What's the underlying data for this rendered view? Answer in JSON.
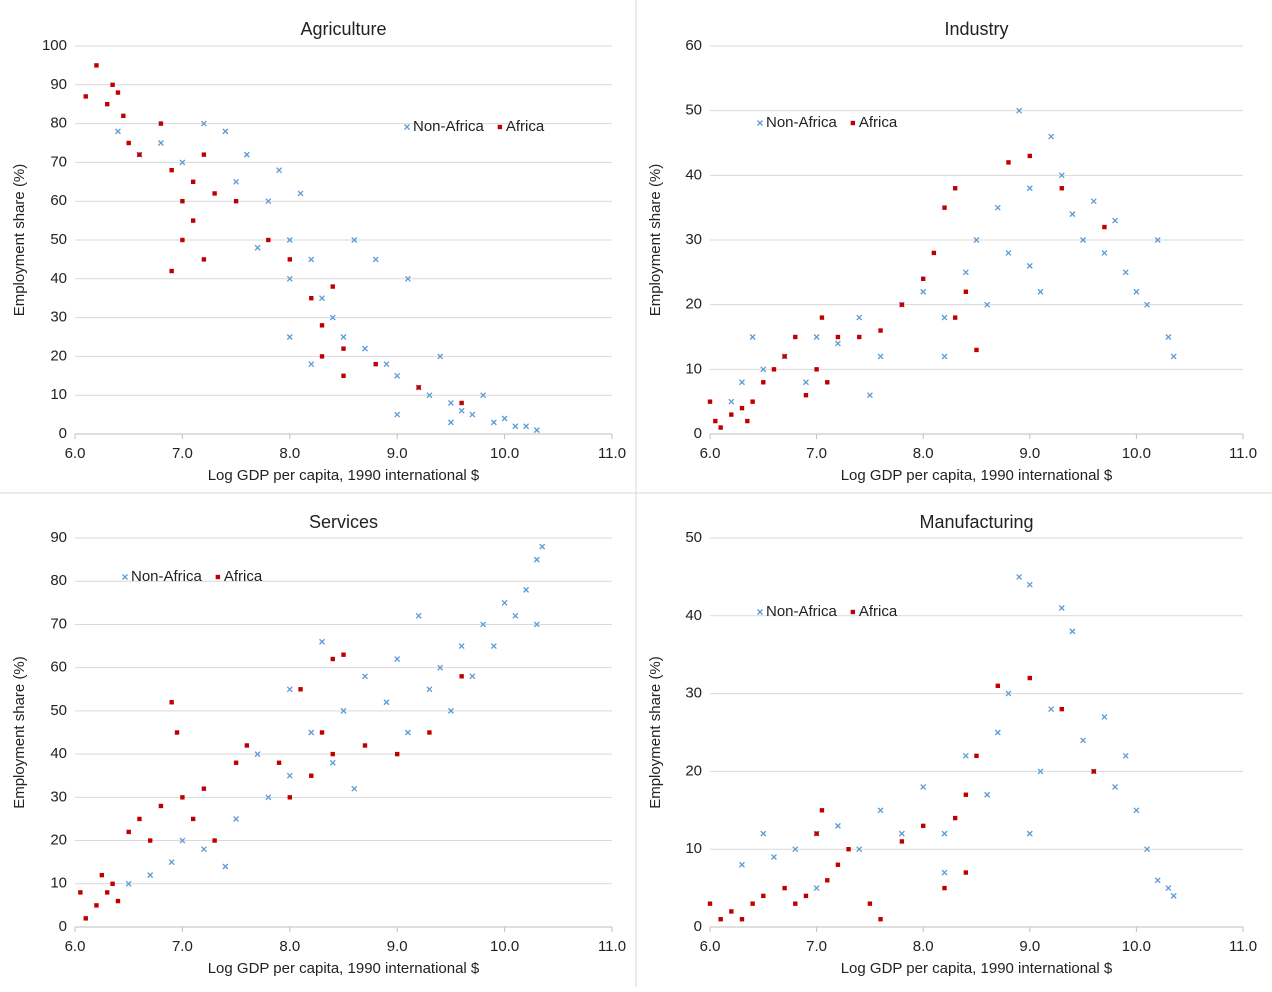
{
  "chart_data": [
    {
      "type": "scatter",
      "title": "Agriculture",
      "x_label": "Log GDP per capita, 1990 international $",
      "y_label": "Employment share (%)",
      "xlim": [
        6,
        11
      ],
      "ylim": [
        0,
        100
      ],
      "xticks": [
        {
          "value": 6,
          "label": "6.0"
        },
        {
          "value": 7,
          "label": "7.0"
        },
        {
          "value": 8,
          "label": "8.0"
        },
        {
          "value": 9,
          "label": "9.0"
        },
        {
          "value": 10,
          "label": "10.0"
        },
        {
          "value": 11,
          "label": "11.0"
        }
      ],
      "yticks": [
        0,
        10,
        20,
        30,
        40,
        50,
        60,
        70,
        80,
        90,
        100
      ],
      "grid": true,
      "legend": "upper right",
      "series": [
        {
          "name": "Non-Africa",
          "color": "#5b9bd5",
          "marker": "x",
          "x": [
            6.4,
            6.6,
            6.8,
            7.0,
            7.2,
            7.4,
            7.5,
            7.6,
            7.8,
            7.9,
            8.0,
            8.0,
            8.1,
            8.2,
            8.3,
            8.4,
            8.5,
            8.6,
            8.7,
            8.8,
            8.9,
            9.0,
            9.1,
            9.2,
            9.3,
            9.4,
            9.5,
            9.6,
            9.7,
            9.8,
            9.9,
            10.0,
            10.1,
            10.2,
            10.3,
            8.0,
            8.2,
            7.7,
            9.0,
            9.5
          ],
          "values": [
            78,
            72,
            75,
            70,
            80,
            78,
            65,
            72,
            60,
            68,
            50,
            40,
            62,
            45,
            35,
            30,
            25,
            50,
            22,
            45,
            18,
            15,
            40,
            12,
            10,
            20,
            8,
            6,
            5,
            10,
            3,
            4,
            2,
            2,
            1,
            25,
            18,
            48,
            5,
            3
          ]
        },
        {
          "name": "Africa",
          "color": "#c00000",
          "marker": "square",
          "x": [
            6.1,
            6.2,
            6.3,
            6.35,
            6.4,
            6.45,
            6.5,
            6.6,
            6.8,
            6.9,
            7.0,
            7.0,
            6.9,
            7.1,
            7.1,
            7.2,
            7.2,
            7.3,
            7.5,
            7.8,
            8.0,
            8.2,
            8.3,
            8.4,
            8.3,
            8.5,
            8.5,
            8.8,
            9.2,
            9.6
          ],
          "values": [
            87,
            95,
            85,
            90,
            88,
            82,
            75,
            72,
            80,
            68,
            60,
            50,
            42,
            55,
            65,
            72,
            45,
            62,
            60,
            50,
            45,
            35,
            28,
            38,
            20,
            15,
            22,
            18,
            12,
            8
          ]
        }
      ]
    },
    {
      "type": "scatter",
      "title": "Industry",
      "x_label": "Log GDP per capita, 1990 international $",
      "y_label": "Employment share (%)",
      "xlim": [
        6,
        11
      ],
      "ylim": [
        0,
        60
      ],
      "xticks": [
        {
          "value": 6,
          "label": "6.0"
        },
        {
          "value": 7,
          "label": "7.0"
        },
        {
          "value": 8,
          "label": "8.0"
        },
        {
          "value": 9,
          "label": "9.0"
        },
        {
          "value": 10,
          "label": "10.0"
        },
        {
          "value": 11,
          "label": "11.0"
        }
      ],
      "yticks": [
        0,
        10,
        20,
        30,
        40,
        50,
        60
      ],
      "grid": true,
      "legend": "upper left",
      "series": [
        {
          "name": "Non-Africa",
          "color": "#5b9bd5",
          "marker": "x",
          "x": [
            6.2,
            6.3,
            6.4,
            6.5,
            6.7,
            6.9,
            7.0,
            7.2,
            7.4,
            7.6,
            7.8,
            8.0,
            8.2,
            8.4,
            8.5,
            8.6,
            8.7,
            8.8,
            8.9,
            9.0,
            9.1,
            9.2,
            9.3,
            9.4,
            9.5,
            9.6,
            9.7,
            9.8,
            9.9,
            10.0,
            10.1,
            10.2,
            10.3,
            10.35,
            7.5,
            8.2,
            9.0
          ],
          "values": [
            5,
            8,
            15,
            10,
            12,
            8,
            15,
            14,
            18,
            12,
            20,
            22,
            18,
            25,
            30,
            20,
            35,
            28,
            50,
            38,
            22,
            46,
            40,
            34,
            30,
            36,
            28,
            33,
            25,
            22,
            20,
            30,
            15,
            12,
            6,
            12,
            26
          ]
        },
        {
          "name": "Africa",
          "color": "#c00000",
          "marker": "square",
          "x": [
            6.0,
            6.05,
            6.1,
            6.2,
            6.3,
            6.35,
            6.4,
            6.5,
            6.6,
            6.7,
            6.8,
            6.9,
            7.0,
            7.05,
            7.1,
            7.2,
            7.4,
            7.6,
            7.8,
            8.0,
            8.1,
            8.2,
            8.3,
            8.3,
            8.4,
            8.5,
            8.8,
            9.0,
            9.3,
            9.7
          ],
          "values": [
            5,
            2,
            1,
            3,
            4,
            2,
            5,
            8,
            10,
            12,
            15,
            6,
            10,
            18,
            8,
            15,
            15,
            16,
            20,
            24,
            28,
            35,
            38,
            18,
            22,
            13,
            42,
            43,
            38,
            32
          ]
        }
      ]
    },
    {
      "type": "scatter",
      "title": "Services",
      "x_label": "Log GDP per capita, 1990 international $",
      "y_label": "Employment share (%)",
      "xlim": [
        6,
        11
      ],
      "ylim": [
        0,
        90
      ],
      "xticks": [
        {
          "value": 6,
          "label": "6.0"
        },
        {
          "value": 7,
          "label": "7.0"
        },
        {
          "value": 8,
          "label": "8.0"
        },
        {
          "value": 9,
          "label": "9.0"
        },
        {
          "value": 10,
          "label": "10.0"
        },
        {
          "value": 11,
          "label": "11.0"
        }
      ],
      "yticks": [
        0,
        10,
        20,
        30,
        40,
        50,
        60,
        70,
        80,
        90
      ],
      "grid": true,
      "legend": "upper left",
      "series": [
        {
          "name": "Non-Africa",
          "color": "#5b9bd5",
          "marker": "x",
          "x": [
            6.5,
            6.7,
            6.9,
            7.0,
            7.2,
            7.5,
            7.7,
            7.8,
            8.0,
            8.0,
            8.2,
            8.3,
            8.4,
            8.5,
            8.7,
            8.9,
            9.0,
            9.1,
            9.2,
            9.3,
            9.4,
            9.5,
            9.6,
            9.7,
            9.8,
            9.9,
            10.0,
            10.1,
            10.2,
            10.3,
            10.35,
            10.3,
            8.6,
            7.4
          ],
          "values": [
            10,
            12,
            15,
            20,
            18,
            25,
            40,
            30,
            55,
            35,
            45,
            66,
            38,
            50,
            58,
            52,
            62,
            45,
            72,
            55,
            60,
            50,
            65,
            58,
            70,
            65,
            75,
            72,
            78,
            85,
            88,
            70,
            32,
            14
          ]
        },
        {
          "name": "Africa",
          "color": "#c00000",
          "marker": "square",
          "x": [
            6.05,
            6.1,
            6.2,
            6.25,
            6.3,
            6.35,
            6.4,
            6.5,
            6.6,
            6.7,
            6.8,
            6.9,
            6.95,
            7.0,
            7.1,
            7.2,
            7.3,
            7.5,
            7.6,
            7.9,
            8.0,
            8.1,
            8.2,
            8.3,
            8.4,
            8.4,
            8.5,
            8.7,
            9.0,
            9.3,
            9.6
          ],
          "values": [
            8,
            2,
            5,
            12,
            8,
            10,
            6,
            22,
            25,
            20,
            28,
            52,
            45,
            30,
            25,
            32,
            20,
            38,
            42,
            38,
            30,
            55,
            35,
            45,
            40,
            62,
            63,
            42,
            40,
            45,
            58
          ]
        }
      ]
    },
    {
      "type": "scatter",
      "title": "Manufacturing",
      "x_label": "Log GDP per capita, 1990 international $",
      "y_label": "Employment share (%)",
      "xlim": [
        6,
        11
      ],
      "ylim": [
        0,
        50
      ],
      "xticks": [
        {
          "value": 6,
          "label": "6.0"
        },
        {
          "value": 7,
          "label": "7.0"
        },
        {
          "value": 8,
          "label": "8.0"
        },
        {
          "value": 9,
          "label": "9.0"
        },
        {
          "value": 10,
          "label": "10.0"
        },
        {
          "value": 11,
          "label": "11.0"
        }
      ],
      "yticks": [
        0,
        10,
        20,
        30,
        40,
        50
      ],
      "grid": true,
      "legend": "upper left",
      "series": [
        {
          "name": "Non-Africa",
          "color": "#5b9bd5",
          "marker": "x",
          "x": [
            6.3,
            6.5,
            6.6,
            6.8,
            7.0,
            7.2,
            7.4,
            7.6,
            7.8,
            8.0,
            8.2,
            8.4,
            8.6,
            8.7,
            8.8,
            8.9,
            9.0,
            9.1,
            9.2,
            9.3,
            9.4,
            9.5,
            9.6,
            9.7,
            9.8,
            9.9,
            10.0,
            10.1,
            10.2,
            10.3,
            10.35,
            9.0,
            8.2,
            7.0
          ],
          "values": [
            8,
            12,
            9,
            10,
            12,
            13,
            10,
            15,
            12,
            18,
            12,
            22,
            17,
            25,
            30,
            45,
            44,
            20,
            28,
            41,
            38,
            24,
            20,
            27,
            18,
            22,
            15,
            10,
            6,
            5,
            4,
            12,
            7,
            5
          ]
        },
        {
          "name": "Africa",
          "color": "#c00000",
          "marker": "square",
          "x": [
            6.0,
            6.1,
            6.2,
            6.3,
            6.4,
            6.5,
            6.7,
            6.8,
            6.9,
            7.0,
            7.05,
            7.1,
            7.2,
            7.3,
            7.5,
            7.6,
            7.8,
            8.0,
            8.2,
            8.3,
            8.4,
            8.5,
            8.4,
            8.7,
            9.0,
            9.3,
            9.6
          ],
          "values": [
            3,
            1,
            2,
            1,
            3,
            4,
            5,
            3,
            4,
            12,
            15,
            6,
            8,
            10,
            3,
            1,
            11,
            13,
            5,
            14,
            17,
            22,
            7,
            31,
            32,
            28,
            20
          ]
        }
      ]
    }
  ]
}
